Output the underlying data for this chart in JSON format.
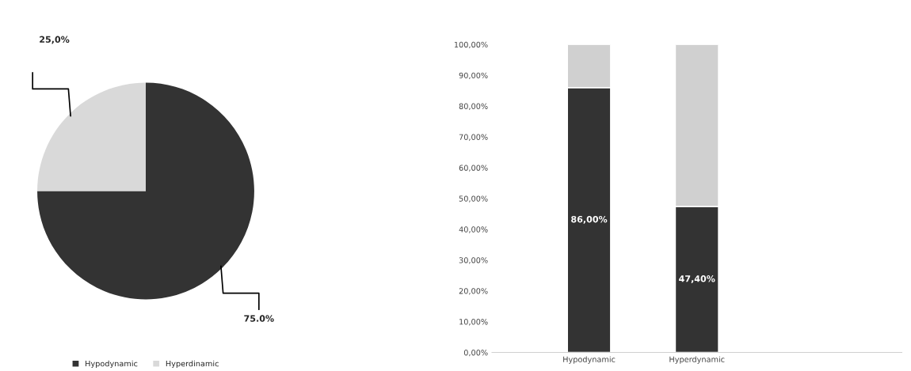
{
  "chart_data": [
    {
      "type": "pie",
      "categories": [
        "Hypodynamic",
        "Hyperdinamic"
      ],
      "values": [
        75.0,
        25.0
      ],
      "colors": [
        "#333333",
        "#d9d9d9"
      ],
      "value_labels": [
        "75.0%",
        "25,0%"
      ],
      "legend": "bottom"
    },
    {
      "type": "bar",
      "stacked": true,
      "categories": [
        "Hypodynamic",
        "Hyperdynamic"
      ],
      "series": [
        {
          "color": "#333333",
          "values": [
            86.0,
            47.4
          ],
          "value_labels": [
            "86,00%",
            "47,40%"
          ]
        },
        {
          "color": "#d0d0d0",
          "values": [
            14.0,
            52.6
          ]
        }
      ],
      "ylim": [
        0,
        100
      ],
      "yticks": [
        {
          "value": 0,
          "label": "0,00%"
        },
        {
          "value": 10,
          "label": "10,00%"
        },
        {
          "value": 20,
          "label": "20,00%"
        },
        {
          "value": 30,
          "label": "30,00%"
        },
        {
          "value": 40,
          "label": "40,00%"
        },
        {
          "value": 50,
          "label": "50,00%"
        },
        {
          "value": 60,
          "label": "60,00%"
        },
        {
          "value": 70,
          "label": "70,00%"
        },
        {
          "value": 80,
          "label": "80,00%"
        },
        {
          "value": 90,
          "label": "90,00%"
        },
        {
          "value": 100,
          "label": "100,00%"
        }
      ],
      "grid": false,
      "legend": false
    }
  ]
}
